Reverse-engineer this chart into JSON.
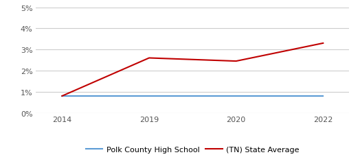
{
  "years": [
    2014,
    2019,
    2020,
    2022
  ],
  "year_labels": [
    "2014",
    "2019",
    "2020",
    "2022"
  ],
  "polk_values": [
    0.008,
    0.008,
    0.008,
    0.008
  ],
  "state_values": [
    0.008,
    0.026,
    0.0245,
    0.033
  ],
  "polk_color": "#5b9bd5",
  "state_color": "#c00000",
  "polk_label": "Polk County High School",
  "state_label": "(TN) State Average",
  "ylim": [
    0,
    0.05
  ],
  "yticks": [
    0,
    0.01,
    0.02,
    0.03,
    0.04,
    0.05
  ],
  "ytick_labels": [
    "0%",
    "1%",
    "2%",
    "3%",
    "4%",
    "5%"
  ],
  "background_color": "#ffffff",
  "grid_color": "#cccccc",
  "line_width": 1.5,
  "tick_fontsize": 8,
  "legend_fontsize": 8
}
